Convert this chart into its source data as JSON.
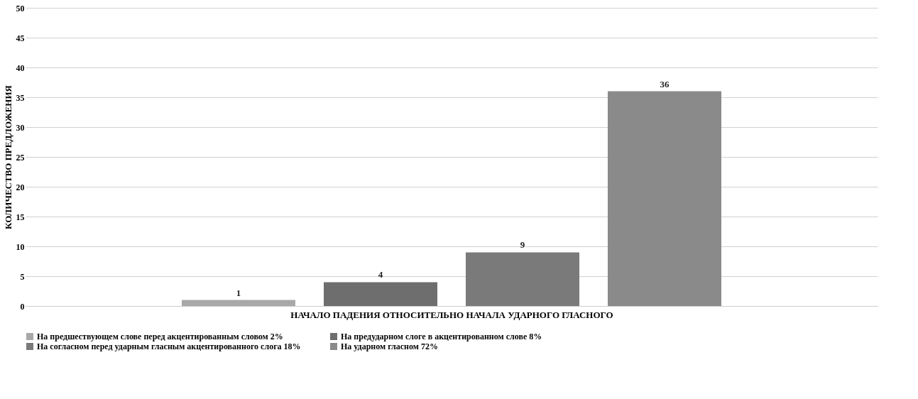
{
  "chart_data": {
    "type": "bar",
    "xlabel": "НАЧАЛО ПАДЕНИЯ ОТНОСИТЕЛЬНО НАЧАЛА УДАРНОГО ГЛАСНОГО",
    "ylabel": "КОЛИЧЕСТВО ПРЕДЛОЖЕНИЯ",
    "categories": [
      null
    ],
    "series": [
      {
        "name": "На предшествующем слове перед акцентированным словом 2%",
        "color": "#a8a8a8",
        "values": [
          1
        ]
      },
      {
        "name": "На предударном слоге в акцентированном слове 8%",
        "color": "#6e6e6e",
        "values": [
          4
        ]
      },
      {
        "name": "На согласном перед ударным гласным акцентированного слога 18%",
        "color": "#7a7a7a",
        "values": [
          9
        ]
      },
      {
        "name": "На ударном  гласном 72%",
        "color": "#8a8a8a",
        "values": [
          36
        ]
      }
    ],
    "ylim": [
      0,
      50
    ],
    "yticks": [
      0,
      5,
      10,
      15,
      20,
      25,
      30,
      35,
      40,
      45,
      50
    ],
    "grid": "y",
    "legend": "bottom",
    "data_labels": true
  }
}
